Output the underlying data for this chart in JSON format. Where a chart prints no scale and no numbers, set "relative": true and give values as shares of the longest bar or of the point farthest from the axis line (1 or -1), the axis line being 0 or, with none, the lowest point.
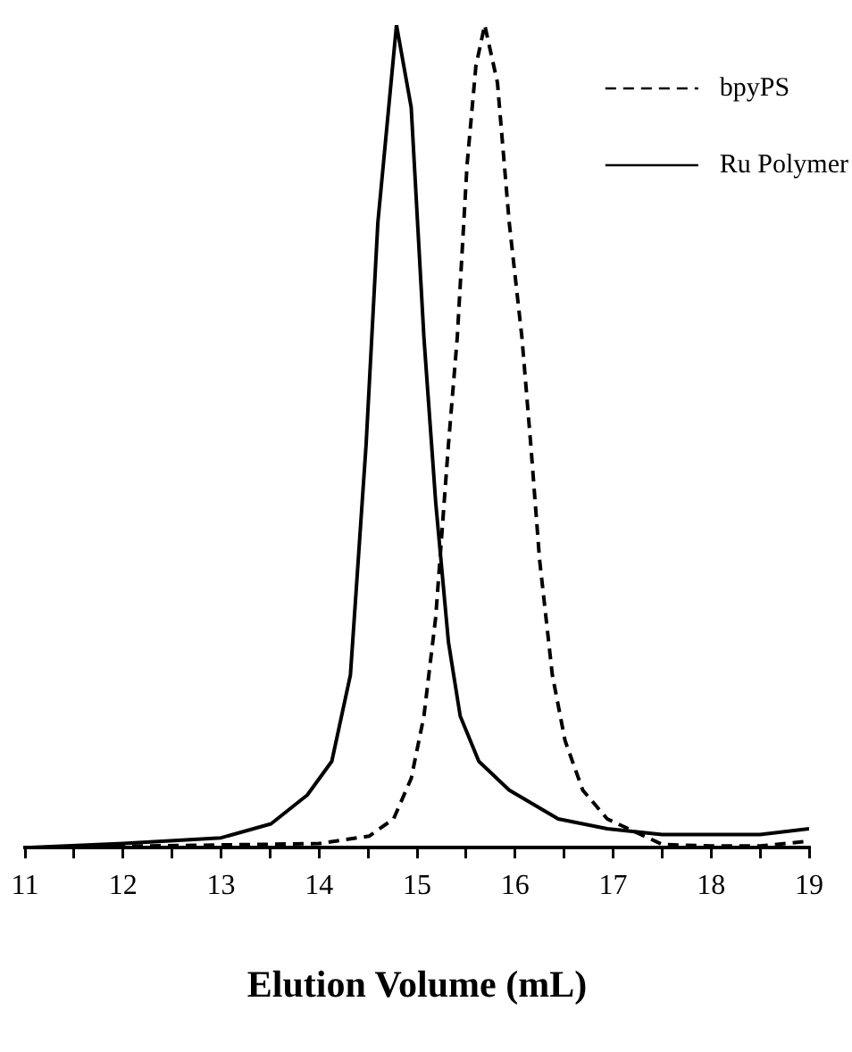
{
  "chart_data": {
    "type": "line",
    "xlabel": "Elution Volume (mL)",
    "relative": true,
    "xlim": [
      11,
      19
    ],
    "xticks": [
      11,
      {
        "value": 11.5,
        "label": null
      },
      12,
      {
        "value": 12.5,
        "label": null
      },
      13,
      {
        "value": 13.5,
        "label": null
      },
      14,
      {
        "value": 14.5,
        "label": null
      },
      15,
      {
        "value": 15.5,
        "label": null
      },
      16,
      {
        "value": 16.5,
        "label": null
      },
      17,
      {
        "value": 17.5,
        "label": null
      },
      18,
      {
        "value": 18.5,
        "label": null
      },
      19
    ],
    "legend": "top right",
    "marker": "none",
    "grid": false,
    "tick_labels": "x",
    "series": [
      {
        "name": "bpyPS",
        "color": "#000000",
        "line_style": "dashed",
        "x": [
          11,
          14,
          14.51,
          14.76,
          14.94,
          15.07,
          15.19,
          15.32,
          15.41,
          15.51,
          15.6,
          15.69,
          15.82,
          15.94,
          16.07,
          16.16,
          16.25,
          16.38,
          16.51,
          16.69,
          16.94,
          17.5,
          18,
          18.5,
          19
        ],
        "values": [
          0,
          0.005,
          0.014,
          0.035,
          0.084,
          0.16,
          0.28,
          0.49,
          0.62,
          0.83,
          0.95,
          1,
          0.93,
          0.76,
          0.62,
          0.49,
          0.35,
          0.21,
          0.13,
          0.07,
          0.035,
          0.004,
          0.002,
          0.002,
          0.008
        ]
      },
      {
        "name": "Ru Polymer",
        "color": "#000000",
        "line_style": "solid",
        "x": [
          11,
          12,
          13,
          13.51,
          13.88,
          14.13,
          14.32,
          14.48,
          14.6,
          14.79,
          14.94,
          15.07,
          15.19,
          15.32,
          15.44,
          15.63,
          15.94,
          16.44,
          16.94,
          17.5,
          18,
          18.5,
          19
        ],
        "values": [
          0,
          0.005,
          0.012,
          0.029,
          0.064,
          0.105,
          0.21,
          0.49,
          0.76,
          1,
          0.9,
          0.62,
          0.42,
          0.25,
          0.16,
          0.105,
          0.07,
          0.035,
          0.023,
          0.016,
          0.016,
          0.016,
          0.023
        ]
      }
    ]
  }
}
